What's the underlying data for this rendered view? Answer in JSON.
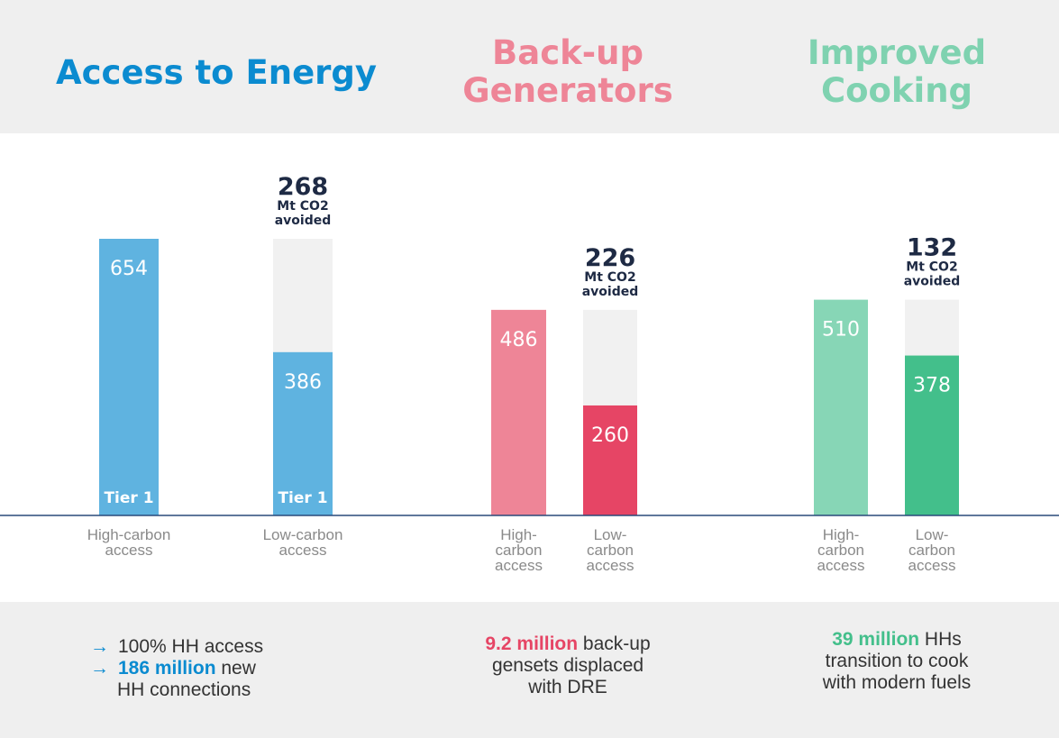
{
  "colors": {
    "access": "#5fb3e0",
    "access_title": "#0b8bd0",
    "backup_high": "#ee8597",
    "backup_low": "#e64565",
    "cooking_high": "#87d6b6",
    "cooking_low": "#43bf8b",
    "remainder": "#f1f1f1",
    "axis": "#2a4a7a"
  },
  "panels": [
    {
      "title_lines": [
        "Access to Energy"
      ],
      "note": "Mt CO2 avoided",
      "avoided_value": "268",
      "avoided_unit_1": "Mt CO2",
      "avoided_unit_2": "avoided",
      "footer": {
        "line1_arrow": "→",
        "line1": "100% HH access",
        "line2_arrow": "→",
        "line2_highlight": "186 million",
        "line2_rest": " new",
        "line3": "HH connections"
      }
    },
    {
      "title_lines": [
        "Back-up",
        "Generators"
      ],
      "avoided_value": "226",
      "avoided_unit_1": "Mt CO2",
      "avoided_unit_2": "avoided",
      "footer": {
        "line1_highlight": "9.2 million",
        "line1_rest": " back-up",
        "line2": "gensets displaced",
        "line3": "with DRE"
      }
    },
    {
      "title_lines": [
        "Improved",
        "Cooking"
      ],
      "avoided_value": "132",
      "avoided_unit_1": "Mt CO2",
      "avoided_unit_2": "avoided",
      "footer": {
        "line1_highlight": "39 million",
        "line1_rest": " HHs",
        "line2": "transition to cook",
        "line3": "with modern fuels"
      }
    }
  ],
  "chart_data": [
    {
      "type": "bar",
      "title": "Access to Energy",
      "categories": [
        "High-carbon access",
        "Low-carbon access"
      ],
      "category_lines": [
        [
          "High-carbon",
          "access"
        ],
        [
          "Low-carbon",
          "access"
        ]
      ],
      "values": [
        654,
        386
      ],
      "value_labels": [
        "654",
        "386"
      ],
      "bar_inner_labels": [
        "Tier 1",
        "Tier 1"
      ],
      "avoided": 268,
      "colors": [
        "#5fb3e0",
        "#5fb3e0"
      ],
      "ylim": [
        0,
        654
      ]
    },
    {
      "type": "bar",
      "title": "Back-up Generators",
      "categories": [
        "High-carbon access",
        "Low-carbon access"
      ],
      "category_lines": [
        [
          "High-",
          "carbon",
          "access"
        ],
        [
          "Low-",
          "carbon",
          "access"
        ]
      ],
      "values": [
        486,
        260
      ],
      "value_labels": [
        "486",
        "260"
      ],
      "avoided": 226,
      "colors": [
        "#ee8597",
        "#e64565"
      ],
      "ylim": [
        0,
        654
      ]
    },
    {
      "type": "bar",
      "title": "Improved Cooking",
      "categories": [
        "High-carbon access",
        "Low-carbon access"
      ],
      "category_lines": [
        [
          "High-",
          "carbon",
          "access"
        ],
        [
          "Low-",
          "carbon",
          "access"
        ]
      ],
      "values": [
        510,
        378
      ],
      "value_labels": [
        "510",
        "378"
      ],
      "avoided": 132,
      "colors": [
        "#87d6b6",
        "#43bf8b"
      ],
      "ylim": [
        0,
        654
      ]
    }
  ]
}
